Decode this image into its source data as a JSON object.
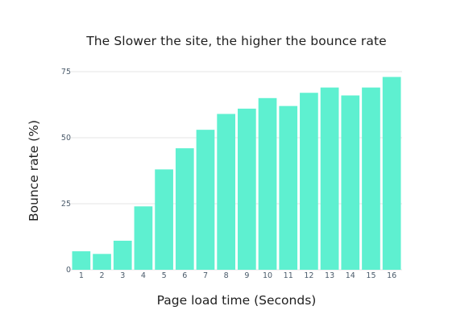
{
  "colors": {
    "bar": "#5ef0d0",
    "gridline": "#e6e6e6",
    "text": "#1f1f1f",
    "tick": "#4a5a6a"
  },
  "chart_data": {
    "type": "bar",
    "title": "The Slower the site, the higher the bounce rate",
    "xlabel": "Page load time (Seconds)",
    "ylabel": "Bounce rate (%)",
    "categories": [
      "1",
      "2",
      "3",
      "4",
      "5",
      "6",
      "7",
      "8",
      "9",
      "10",
      "11",
      "12",
      "13",
      "14",
      "15",
      "16"
    ],
    "values": [
      7,
      6,
      11,
      24,
      38,
      46,
      53,
      59,
      61,
      65,
      62,
      67,
      69,
      66,
      69,
      73
    ],
    "ylim": [
      0,
      75
    ],
    "yticks": [
      0,
      25,
      50,
      75
    ],
    "grid": true,
    "legend": "none"
  }
}
